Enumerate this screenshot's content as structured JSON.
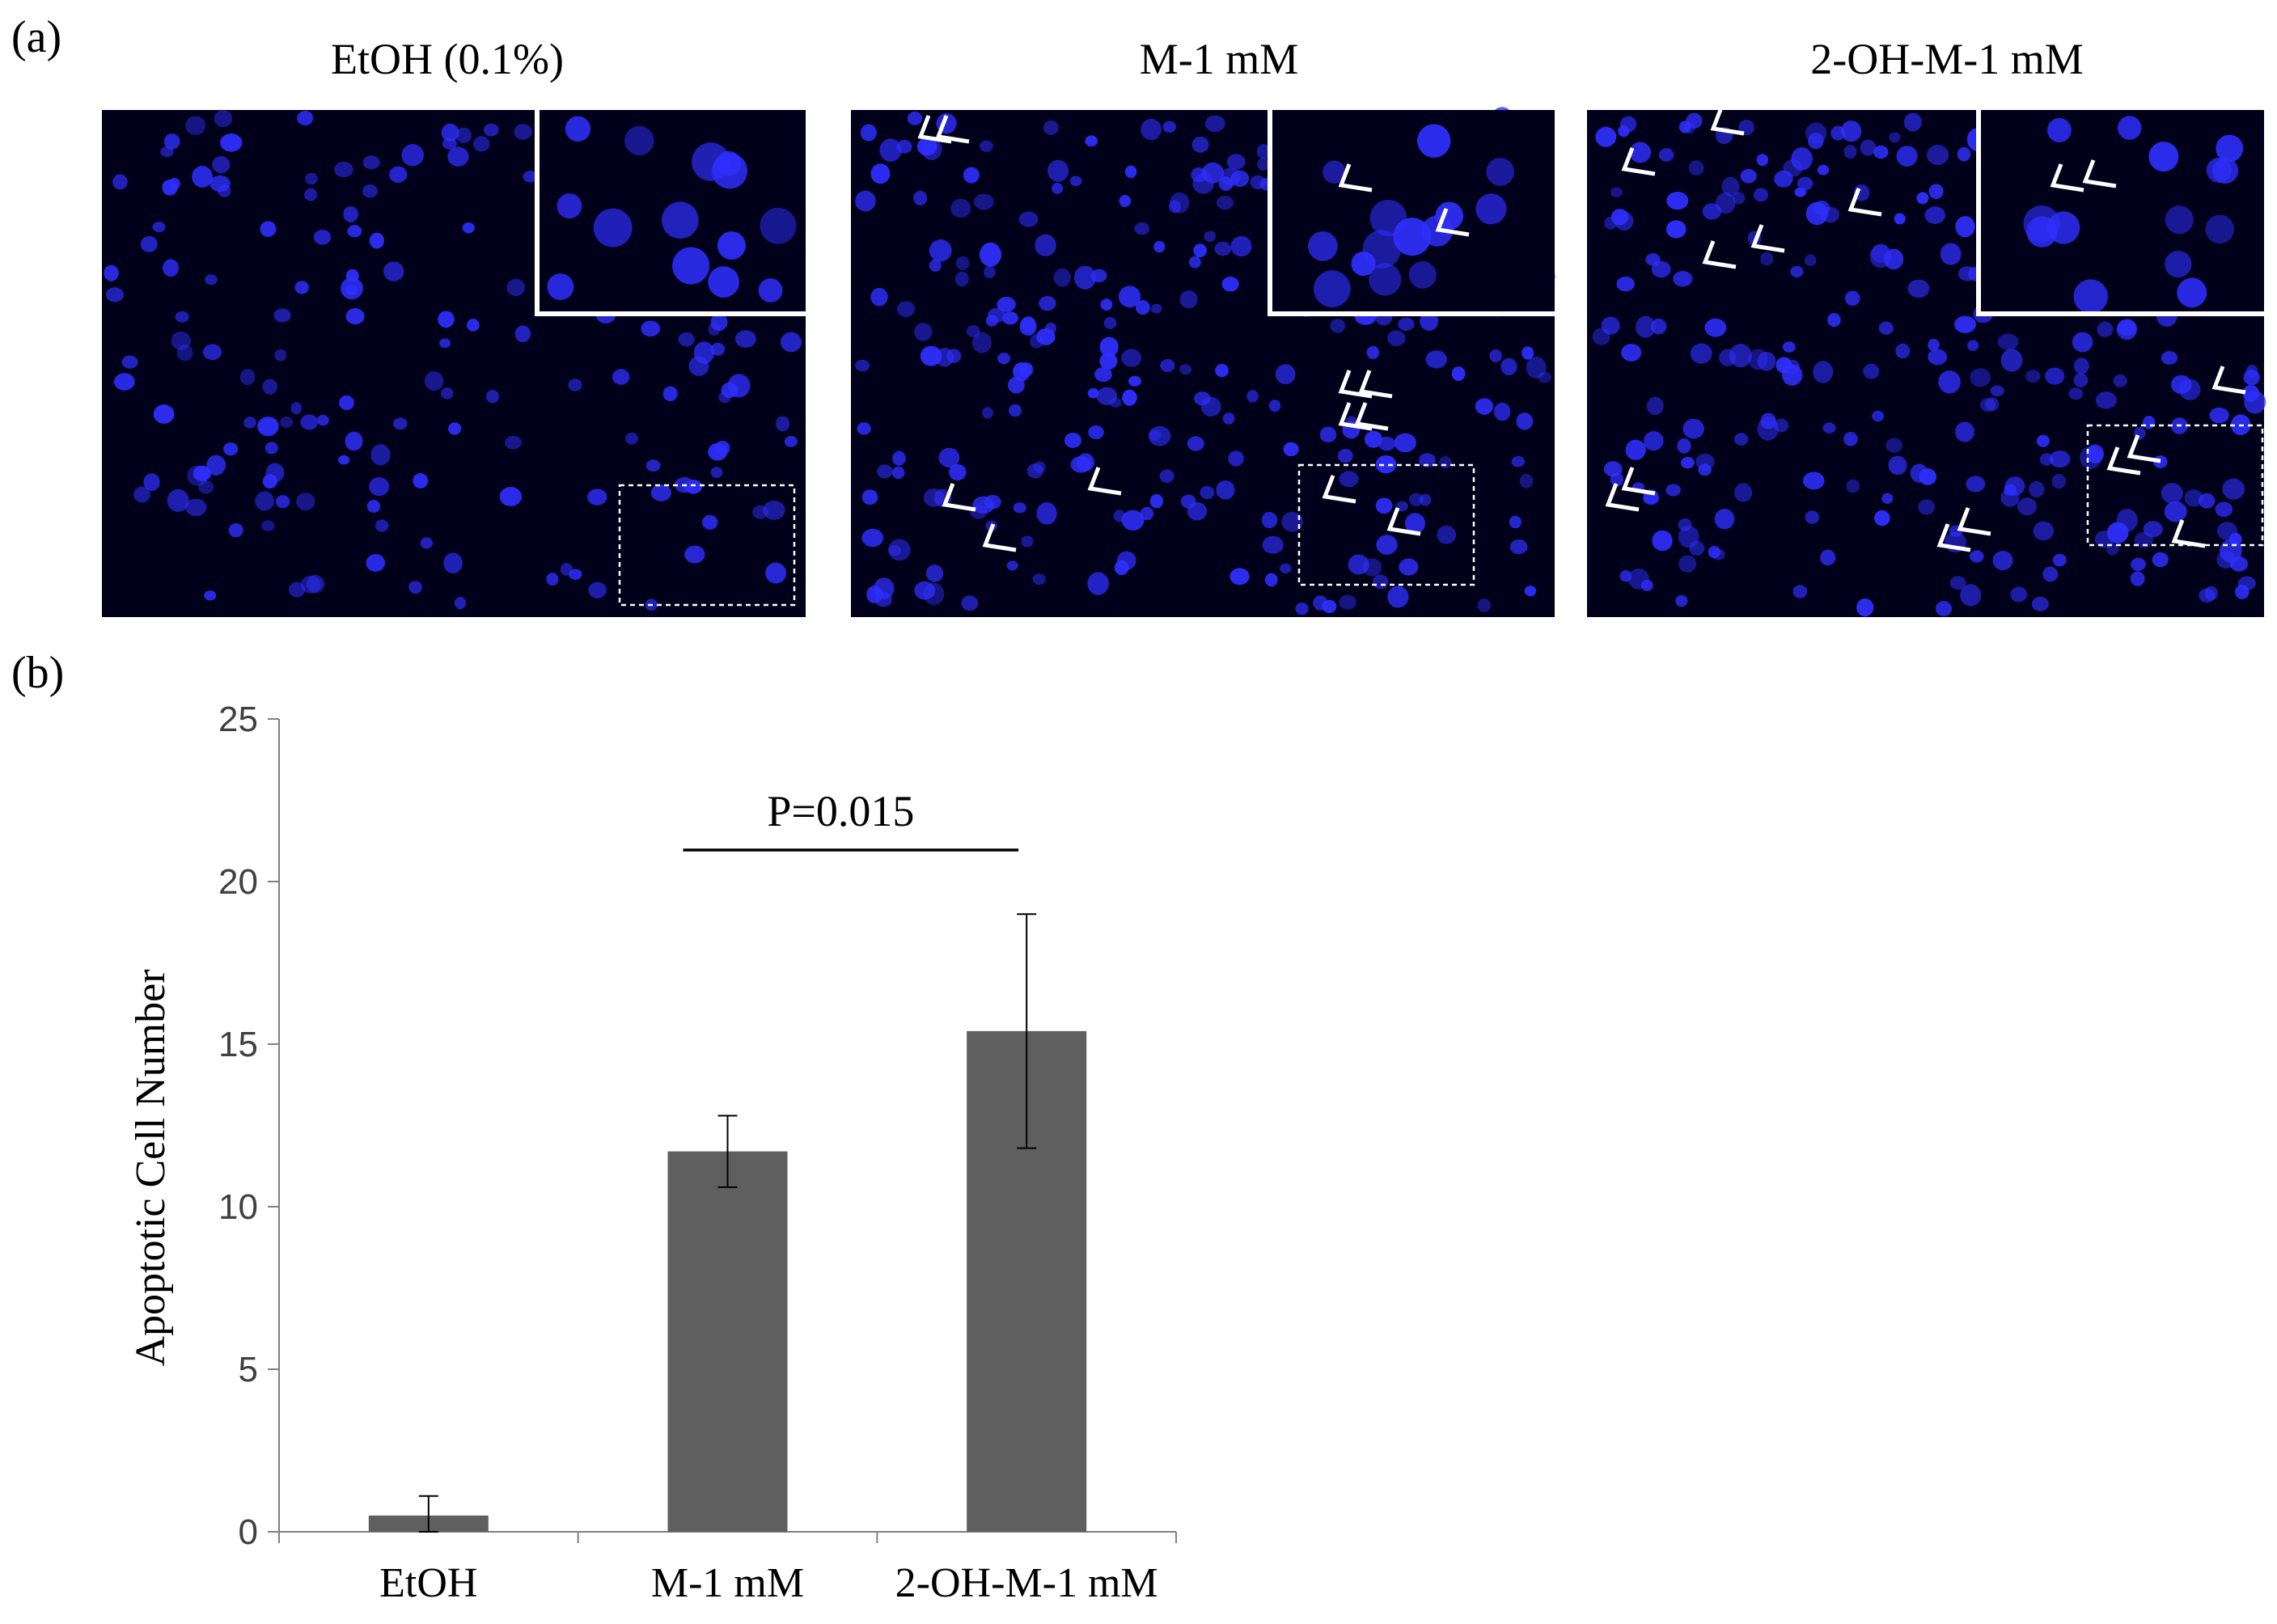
{
  "panel_a": {
    "label": "(a)",
    "images": [
      {
        "title": "EtOH (0.1%)"
      },
      {
        "title": "M-1 mM"
      },
      {
        "title": "2-OH-M-1 mM"
      }
    ]
  },
  "panel_b": {
    "label": "(b)"
  },
  "colors": {
    "bar": "#5f5f5f",
    "axis": "#808080",
    "nuclei": "#2f2fff",
    "image_bg": "#00001a"
  },
  "chart_data": {
    "type": "bar",
    "categories": [
      "EtOH",
      "M-1 mM",
      "2-OH-M-1 mM"
    ],
    "values": [
      0.5,
      11.7,
      15.4
    ],
    "errors": [
      0.6,
      1.1,
      3.6
    ],
    "ylabel": "Apoptotic Cell Number",
    "ylim": [
      0,
      25
    ],
    "yticks": [
      0,
      5,
      10,
      15,
      20,
      25
    ],
    "annotation": {
      "text": "P=0.015",
      "from": "M-1 mM",
      "to": "2-OH-M-1 mM"
    },
    "grid": false,
    "legend": "none"
  }
}
